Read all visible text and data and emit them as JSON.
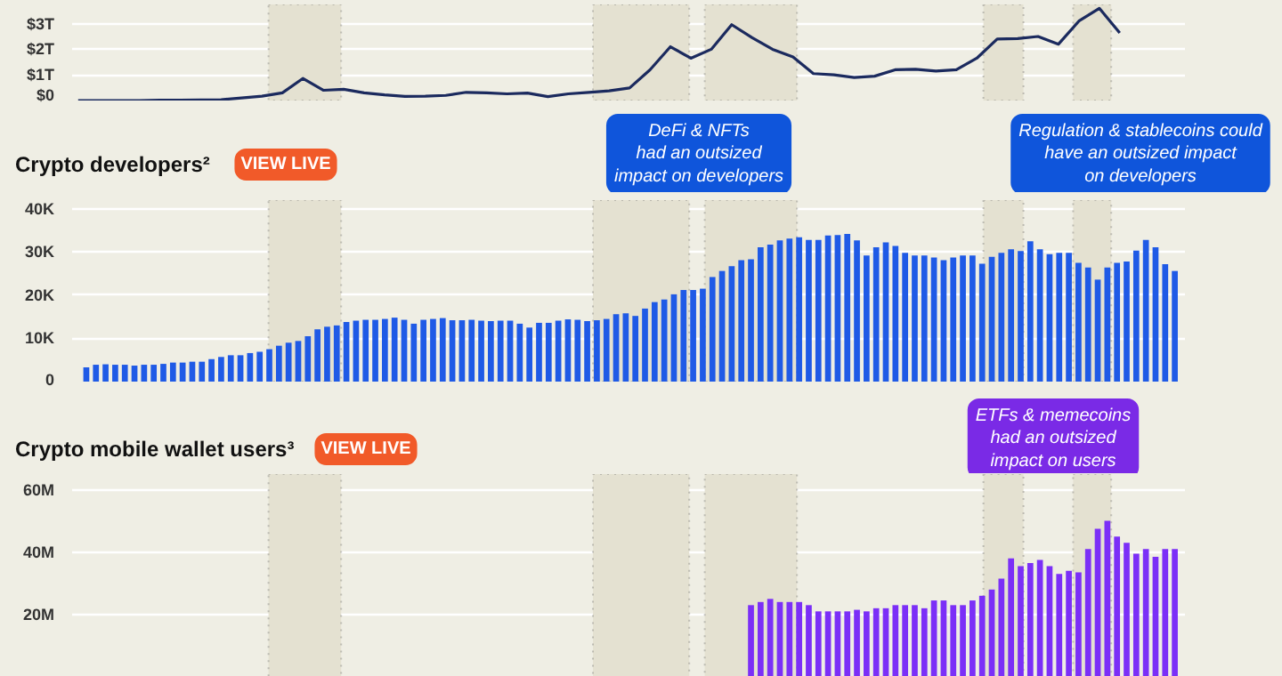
{
  "chart_data": [
    {
      "type": "line",
      "color": "#1b2a5e",
      "tick_labels": "y",
      "grid": "y",
      "ylim": [
        0,
        3.75
      ],
      "yticks": [
        {
          "value": 0,
          "label": "$0"
        },
        {
          "value": 1,
          "label": "$1T"
        },
        {
          "value": 2,
          "label": "$2T"
        },
        {
          "value": 3,
          "label": "$3T"
        }
      ],
      "categories": [
        null,
        null,
        null,
        null,
        null,
        null,
        null,
        null,
        null,
        null,
        null,
        null,
        null,
        null,
        null,
        null,
        null,
        null,
        null,
        null,
        null,
        null,
        null,
        null,
        null,
        null,
        null,
        null,
        null,
        null,
        null,
        null,
        null,
        null,
        null,
        null,
        null,
        null,
        null,
        null,
        null,
        null,
        null,
        null,
        null,
        null,
        null,
        null,
        null,
        null,
        null,
        null
      ],
      "values": [
        0,
        0,
        0,
        0,
        0.01,
        0.01,
        0.02,
        0.03,
        0.1,
        0.17,
        0.3,
        0.86,
        0.4,
        0.44,
        0.3,
        0.22,
        0.16,
        0.17,
        0.2,
        0.32,
        0.3,
        0.26,
        0.29,
        0.15,
        0.26,
        0.32,
        0.38,
        0.49,
        1.2,
        2.1,
        1.65,
        2.0,
        2.96,
        2.45,
        2.0,
        1.7,
        1.05,
        1.0,
        0.9,
        0.95,
        1.2,
        1.22,
        1.15,
        1.2,
        1.65,
        2.4,
        2.42,
        2.5,
        2.2,
        3.1,
        3.6,
        2.64
      ]
    },
    {
      "type": "bar",
      "title": "Crypto developers²",
      "color": "#1f5ae6",
      "tick_labels": "y",
      "grid": "y",
      "ylim": [
        0,
        42
      ],
      "yticks": [
        {
          "value": 0,
          "label": "0"
        },
        {
          "value": 10,
          "label": "10K"
        },
        {
          "value": 20,
          "label": "20K"
        },
        {
          "value": 30,
          "label": "30K"
        },
        {
          "value": 40,
          "label": "40K"
        }
      ],
      "categories": [
        null,
        null,
        null,
        null,
        null,
        null,
        null,
        null,
        null,
        null,
        null,
        null,
        null,
        null,
        null,
        null,
        null,
        null,
        null,
        null,
        null,
        null,
        null,
        null,
        null,
        null,
        null,
        null,
        null,
        null,
        null,
        null,
        null,
        null,
        null,
        null,
        null,
        null,
        null,
        null,
        null,
        null,
        null,
        null,
        null,
        null,
        null,
        null,
        null,
        null,
        null,
        null,
        null,
        null,
        null,
        null,
        null,
        null,
        null,
        null,
        null,
        null,
        null,
        null,
        null,
        null,
        null,
        null,
        null,
        null,
        null,
        null,
        null,
        null,
        null,
        null,
        null,
        null,
        null,
        null,
        null,
        null,
        null,
        null,
        null,
        null,
        null,
        null,
        null,
        null,
        null,
        null,
        null,
        null,
        null,
        null,
        null,
        null,
        null,
        null,
        null,
        null,
        null,
        null,
        null,
        null,
        null,
        null,
        null,
        null,
        null,
        null,
        null,
        null
      ],
      "values": [
        3.3,
        3.9,
        4.0,
        3.9,
        3.9,
        3.7,
        3.9,
        3.9,
        4.1,
        4.4,
        4.4,
        4.6,
        4.6,
        5.2,
        5.7,
        6.1,
        6.1,
        6.6,
        6.9,
        7.5,
        8.3,
        9.0,
        9.4,
        10.5,
        12.1,
        12.7,
        13.0,
        13.8,
        14.1,
        14.3,
        14.3,
        14.5,
        14.8,
        14.3,
        13.4,
        14.3,
        14.5,
        14.7,
        14.2,
        14.2,
        14.3,
        14.1,
        14.0,
        14.1,
        14.1,
        13.4,
        12.5,
        13.6,
        13.6,
        14.1,
        14.4,
        14.3,
        14.0,
        14.2,
        14.5,
        15.6,
        15.8,
        15.2,
        16.9,
        18.4,
        19.0,
        20.2,
        21.2,
        21.2,
        21.5,
        24.2,
        25.6,
        26.7,
        28.1,
        28.3,
        31.1,
        31.7,
        32.7,
        33.1,
        33.4,
        32.8,
        32.8,
        33.8,
        33.9,
        34.2,
        32.7,
        29.2,
        31.1,
        32.2,
        31.4,
        29.8,
        29.2,
        29.2,
        28.7,
        28.1,
        28.7,
        29.2,
        29.2,
        27.3,
        28.9,
        29.8,
        30.6,
        30.2,
        32.5,
        30.6,
        29.5,
        29.8,
        29.8,
        27.5,
        26.4,
        23.6,
        26.4,
        27.5,
        27.8,
        30.3,
        32.8,
        31.1,
        27.2,
        25.6
      ],
      "annotations": [
        "VIEW LIVE",
        "DeFi & NFTs\nhad an outsized\nimpact on developers",
        "Regulation & stablecoins could\nhave an outsized impact\non developers"
      ]
    },
    {
      "type": "bar",
      "title": "Crypto mobile wallet users³",
      "color": "#7b2ff7",
      "tick_labels": "y",
      "grid": "y",
      "ylim": [
        0,
        65
      ],
      "yticks": [
        {
          "value": 20,
          "label": "20M"
        },
        {
          "value": 40,
          "label": "40M"
        },
        {
          "value": 60,
          "label": "60M"
        }
      ],
      "categories": [
        null,
        null,
        null,
        null,
        null,
        null,
        null,
        null,
        null,
        null,
        null,
        null,
        null,
        null,
        null,
        null,
        null,
        null,
        null,
        null,
        null,
        null,
        null,
        null,
        null,
        null,
        null,
        null,
        null,
        null,
        null,
        null,
        null,
        null,
        null,
        null,
        null,
        null,
        null,
        null,
        null,
        null,
        null,
        null,
        null,
        null,
        null,
        null,
        null,
        null,
        null,
        null,
        null,
        null,
        null,
        null,
        null,
        null,
        null,
        null,
        null,
        null,
        null,
        null,
        null,
        null,
        null,
        null,
        null,
        null,
        null,
        null,
        null,
        null,
        null,
        null,
        null,
        null,
        null,
        null,
        null,
        null,
        null,
        null,
        null,
        null,
        null,
        null,
        null,
        null,
        null,
        null,
        null,
        null,
        null,
        null,
        null,
        null,
        null,
        null,
        null,
        null,
        null,
        null,
        null,
        null,
        null,
        null,
        null,
        null,
        null,
        null,
        null,
        null
      ],
      "values": [
        null,
        null,
        null,
        null,
        null,
        null,
        null,
        null,
        null,
        null,
        null,
        null,
        null,
        null,
        null,
        null,
        null,
        null,
        null,
        null,
        null,
        null,
        null,
        null,
        null,
        null,
        null,
        null,
        null,
        null,
        null,
        null,
        null,
        null,
        null,
        null,
        null,
        null,
        null,
        null,
        null,
        null,
        null,
        null,
        null,
        null,
        null,
        null,
        null,
        null,
        null,
        null,
        null,
        null,
        null,
        null,
        null,
        null,
        null,
        null,
        null,
        null,
        null,
        null,
        null,
        null,
        null,
        null,
        null,
        23,
        24,
        25,
        24,
        24,
        24,
        23,
        21,
        21,
        21,
        21,
        21.5,
        21,
        22,
        22,
        23,
        23,
        23,
        22,
        24.5,
        24.5,
        23,
        23,
        24.5,
        26,
        28,
        31.5,
        38,
        35.5,
        36.5,
        37.5,
        35.5,
        33,
        34,
        33.5,
        41,
        47.5,
        50,
        45,
        43,
        39.5,
        41,
        38.5,
        41,
        41
      ],
      "annotations": [
        "VIEW LIVE",
        "ETFs & memecoins\nhad an outsized\nimpact on users"
      ]
    }
  ]
}
